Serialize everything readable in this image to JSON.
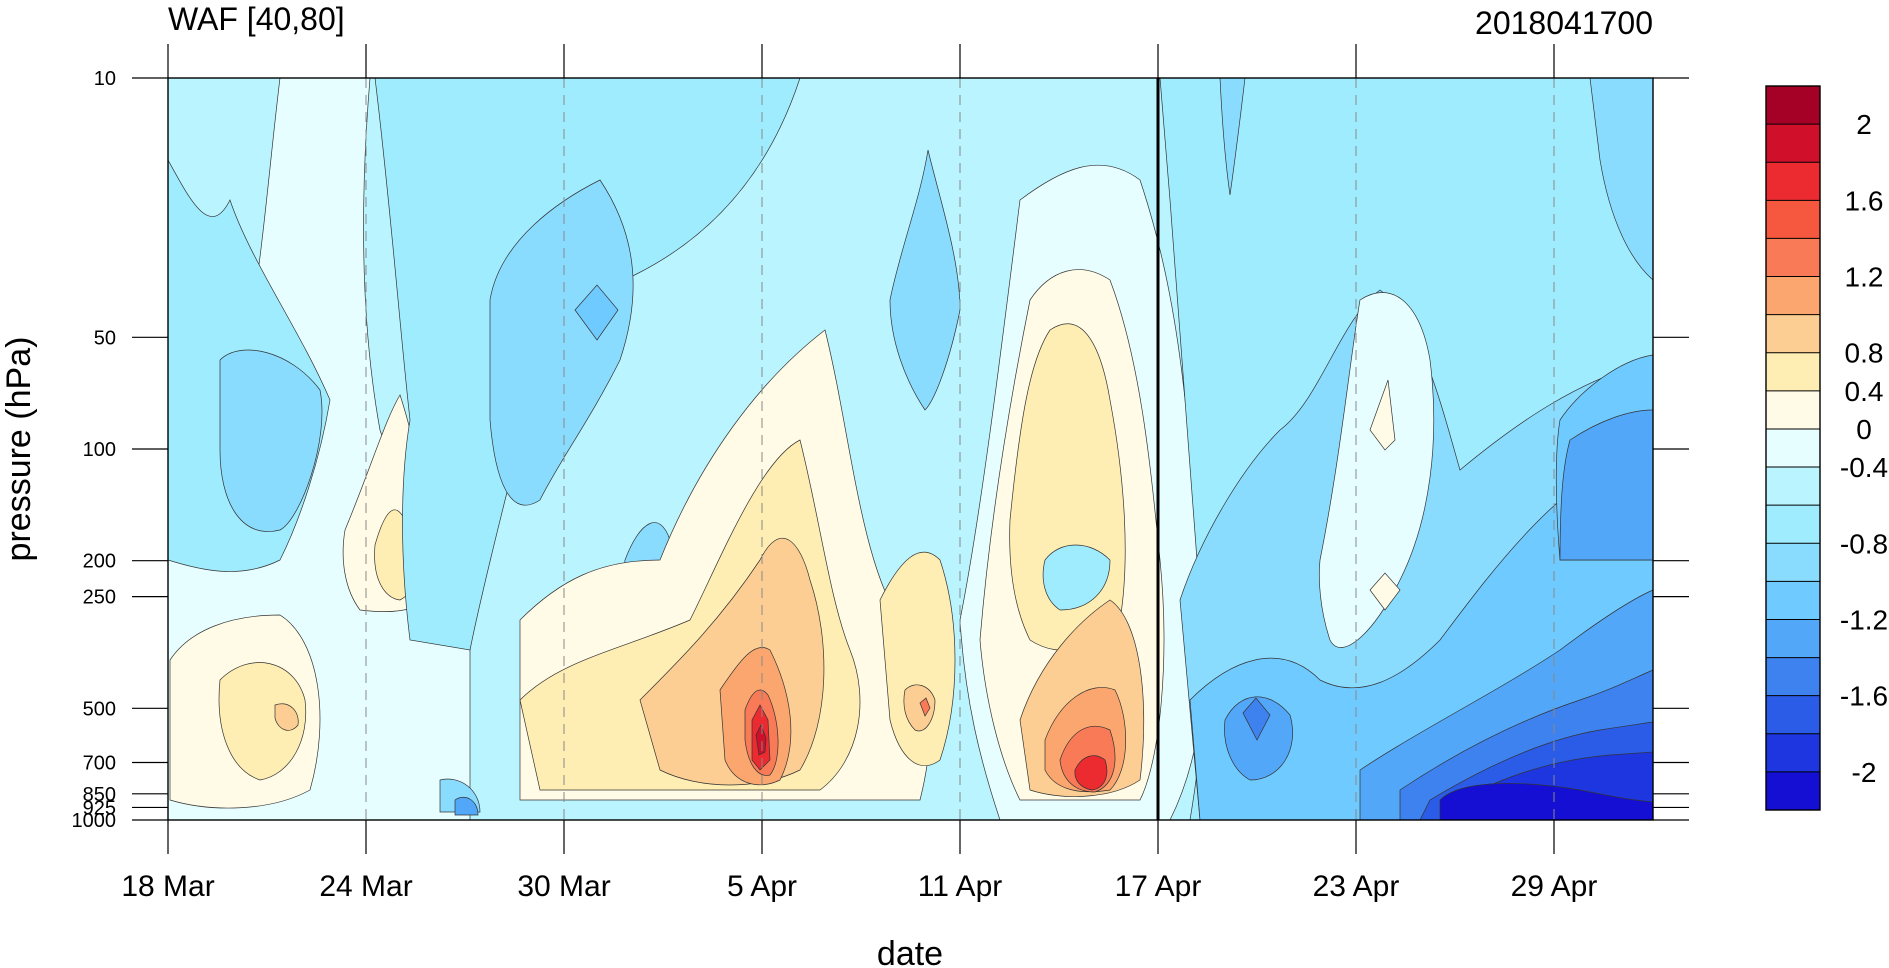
{
  "chart_data": {
    "type": "heatmap",
    "title": "WAF [40,80]",
    "subtitle": "2018041700",
    "xlabel": "date",
    "ylabel": "pressure (hPa)",
    "x_ticks": [
      "18 Mar",
      "24 Mar",
      "30 Mar",
      "5 Apr",
      "11 Apr",
      "17 Apr",
      "23 Apr",
      "29 Apr"
    ],
    "x_tick_days": [
      0,
      6,
      12,
      18,
      24,
      30,
      36,
      42
    ],
    "x_range_days": [
      0,
      45
    ],
    "y_ticks": [
      "10",
      "50",
      "100",
      "200",
      "250",
      "500",
      "700",
      "850",
      "925",
      "1000"
    ],
    "y_tick_values": [
      10,
      50,
      100,
      200,
      250,
      500,
      700,
      850,
      925,
      1000
    ],
    "y_range": [
      10,
      1000
    ],
    "y_scale": "log, inverted",
    "marker_line_day": 30,
    "colorbar_labels": [
      "2",
      "1.6",
      "1.2",
      "0.8",
      "0.4",
      "0",
      "-0.4",
      "-0.8",
      "-1.2",
      "-1.6",
      "-2"
    ],
    "colorbar_levels": [
      2,
      1.6,
      1.2,
      0.8,
      0.4,
      0,
      -0.4,
      -0.8,
      -1.2,
      -1.6,
      -2
    ],
    "colorbar_colors": [
      "#a50026",
      "#d0102a",
      "#ec2b30",
      "#f6573f",
      "#f87a56",
      "#fba66f",
      "#fcce93",
      "#feeeb3",
      "#fffbe6",
      "#e6feff",
      "#baf4ff",
      "#a0ecff",
      "#8adcff",
      "#6fcaff",
      "#52a7f8",
      "#3e82f0",
      "#2b5ce8",
      "#1d36e0",
      "#140fd2"
    ]
  }
}
